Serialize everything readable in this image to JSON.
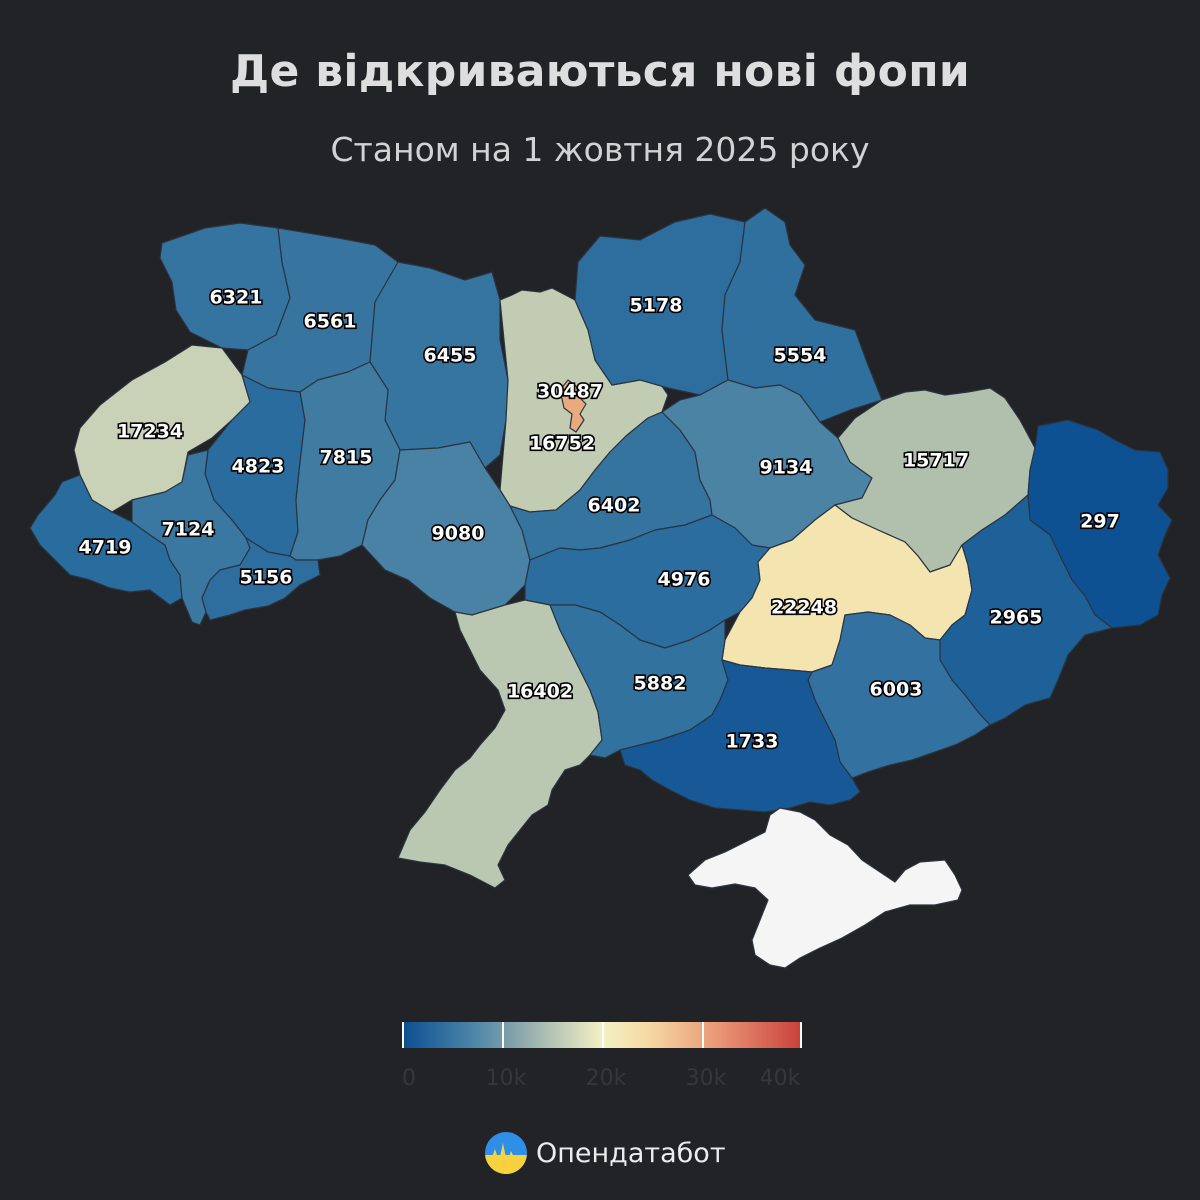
{
  "title": "Де відкриваються нові фопи",
  "subtitle": "Станом на 1 жовтня 2025 року",
  "brand": {
    "name": "Опендатабот",
    "logo_icon": "opendatabot-logo-icon"
  },
  "colors": {
    "background": "#212327",
    "scale": [
      "#0b4f92",
      "#4d86a8",
      "#f3f1c4",
      "#f6d8a2",
      "#c9403a"
    ],
    "occupied": "#f5f5f5"
  },
  "legend": {
    "ticks": [
      {
        "value": 0,
        "label": "0"
      },
      {
        "value": 10000,
        "label": "10k"
      },
      {
        "value": 20000,
        "label": "20k"
      },
      {
        "value": 30000,
        "label": "30k"
      },
      {
        "value": 40000,
        "label": "40k"
      }
    ],
    "max": 40000
  },
  "map_data": {
    "type": "choropleth",
    "regions": [
      {
        "id": "volyn",
        "value": 6321
      },
      {
        "id": "rivne",
        "value": 6561
      },
      {
        "id": "zhytomyr",
        "value": 6455
      },
      {
        "id": "kyiv-oblast",
        "value": 16752
      },
      {
        "id": "kyiv-city",
        "value": 30487
      },
      {
        "id": "chernihiv",
        "value": 5178
      },
      {
        "id": "sumy",
        "value": 5554
      },
      {
        "id": "lviv",
        "value": 17234
      },
      {
        "id": "ternopil",
        "value": 4823
      },
      {
        "id": "khmelnytskyi",
        "value": 7815
      },
      {
        "id": "vinnytsia",
        "value": 9080
      },
      {
        "id": "cherkasy",
        "value": 6402
      },
      {
        "id": "poltava",
        "value": 9134
      },
      {
        "id": "kharkiv",
        "value": 15717
      },
      {
        "id": "luhansk",
        "value": 297
      },
      {
        "id": "zakarpattia",
        "value": 4719
      },
      {
        "id": "ivano-frankivsk",
        "value": 7124
      },
      {
        "id": "chernivtsi",
        "value": 5156
      },
      {
        "id": "kirovohrad",
        "value": 4976
      },
      {
        "id": "dnipropetrovsk",
        "value": 22248
      },
      {
        "id": "donetsk",
        "value": 2965
      },
      {
        "id": "odesa",
        "value": 16402
      },
      {
        "id": "mykolaiv",
        "value": 5882
      },
      {
        "id": "zaporizhzhia",
        "value": 6003
      },
      {
        "id": "kherson",
        "value": 1733
      },
      {
        "id": "crimea",
        "value": null
      }
    ]
  }
}
